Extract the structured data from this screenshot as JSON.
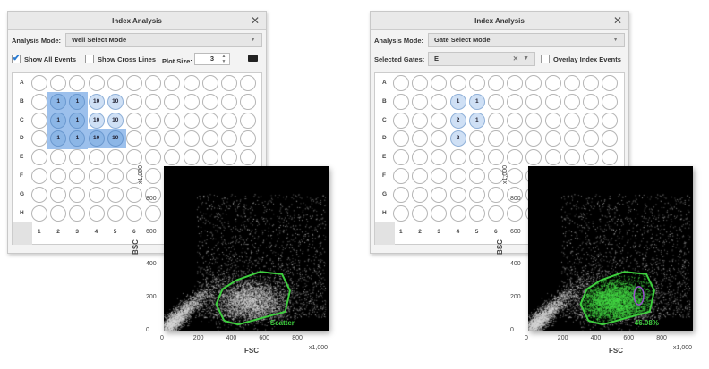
{
  "left": {
    "title": "Index Analysis",
    "close_icon": "close-icon",
    "analysis_mode_label": "Analysis Mode:",
    "analysis_mode_value": "Well Select Mode",
    "show_all_events_label": "Show All Events",
    "show_all_events_checked": true,
    "show_cross_lines_label": "Show Cross Lines",
    "show_cross_lines_checked": false,
    "plot_size_label": "Plot Size:",
    "plot_size_value": "3",
    "toolbar_icon": "toolbox-icon",
    "wells": {
      "B2": "1",
      "B3": "1",
      "B4": "10",
      "B5": "10",
      "C2": "1",
      "C3": "1",
      "C4": "10",
      "C5": "10",
      "D2": "1",
      "D3": "1",
      "D4": "10",
      "D5": "10"
    },
    "selected_wells": [
      "B2",
      "B3",
      "C2",
      "C3",
      "D2",
      "D3",
      "D4",
      "D5"
    ],
    "plot": {
      "gate_label": "Scatter",
      "gate_color": "#3ecf3e",
      "highlight_gate_events": false
    }
  },
  "right": {
    "title": "Index Analysis",
    "close_icon": "close-icon",
    "analysis_mode_label": "Analysis Mode:",
    "analysis_mode_value": "Gate Select Mode",
    "selected_gates_label": "Selected Gates:",
    "selected_gates_value": "E",
    "overlay_label": "Overlay Index Events",
    "overlay_checked": false,
    "wells": {
      "B4": "1",
      "B5": "1",
      "C4": "2",
      "C5": "1",
      "D4": "2"
    },
    "selected_wells": [],
    "plot": {
      "gate_label": "46.08%",
      "gate_color": "#3ecf3e",
      "highlight_gate_events": true,
      "subgate_color": "#9b4fd0"
    }
  },
  "grid": {
    "rows": [
      "A",
      "B",
      "C",
      "D",
      "E",
      "F",
      "G",
      "H"
    ],
    "columns": [
      "1",
      "2",
      "3",
      "4",
      "5",
      "6"
    ]
  },
  "chart_data": {
    "type": "scatter",
    "xlabel": "FSC",
    "ylabel": "BSC",
    "x_multiplier": "x1,000",
    "y_multiplier": "x1,000",
    "xlim": [
      0,
      1000
    ],
    "ylim": [
      0,
      1000
    ],
    "x_ticks": [
      "0",
      "200",
      "400",
      "600",
      "800"
    ],
    "y_ticks": [
      "0",
      "200",
      "400",
      "600",
      "800"
    ],
    "gate_polygon": [
      [
        366,
        60
      ],
      [
        318,
        161
      ],
      [
        356,
        252
      ],
      [
        442,
        307
      ],
      [
        585,
        358
      ],
      [
        718,
        343
      ],
      [
        766,
        243
      ],
      [
        737,
        115
      ],
      [
        451,
        37
      ]
    ],
    "subgate_ellipse": {
      "cx": 672,
      "cy": 212,
      "rx": 29,
      "ry": 55
    }
  }
}
